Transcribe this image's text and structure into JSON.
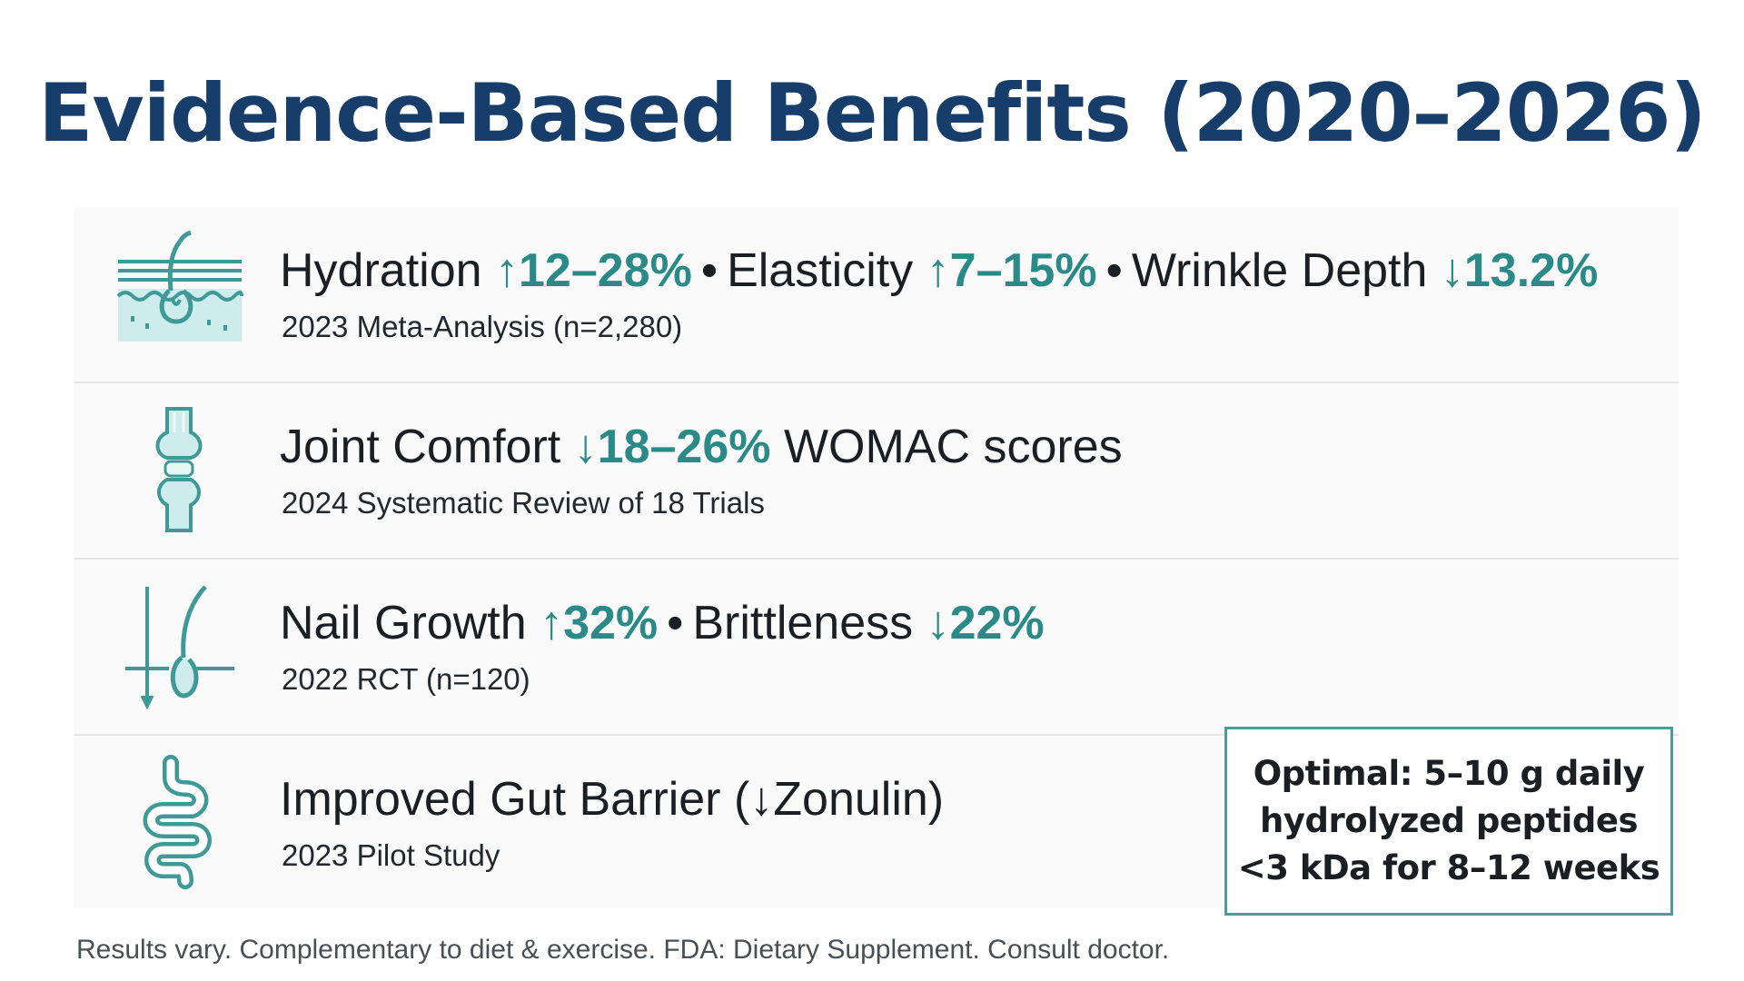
{
  "title": "Evidence-Based Benefits (2020–2026)",
  "colors": {
    "title": "#173d6b",
    "accent_teal": "#2a8a87",
    "icon_stroke": "#3f9a97",
    "icon_fill": "#cdeceb",
    "callout_border": "#4a9d9a"
  },
  "rows": [
    {
      "icon": "skin-hair-follicle-icon",
      "segments": [
        {
          "label": "Hydration ",
          "metric": "↑12–28%"
        },
        {
          "label": "Elasticity ",
          "metric": "↑7–15%"
        },
        {
          "label": "Wrinkle Depth ",
          "metric": "↓13.2%"
        }
      ],
      "source": "2023 Meta-Analysis (n=2,280)"
    },
    {
      "icon": "knee-joint-icon",
      "label": "Joint Comfort ",
      "metric": "↓18–26%",
      "suffix": " WOMAC scores",
      "source": "2024 Systematic Review of 18 Trials"
    },
    {
      "icon": "hair-nail-growth-icon",
      "segments": [
        {
          "label": "Nail Growth ",
          "metric": "↑32%"
        },
        {
          "label": "Brittleness ",
          "metric": "↓22%"
        }
      ],
      "source": "2022 RCT (n=120)"
    },
    {
      "icon": "intestine-gut-icon",
      "label": "Improved Gut Barrier (↓Zonulin)",
      "source": "2023 Pilot Study"
    }
  ],
  "bullet": "•",
  "callout": {
    "line1": "Optimal: 5–10 g daily",
    "line2": "hydrolyzed peptides",
    "line3": "<3 kDa for 8–12 weeks"
  },
  "disclaimer": "Results vary. Complementary to diet & exercise. FDA: Dietary Supplement. Consult doctor."
}
